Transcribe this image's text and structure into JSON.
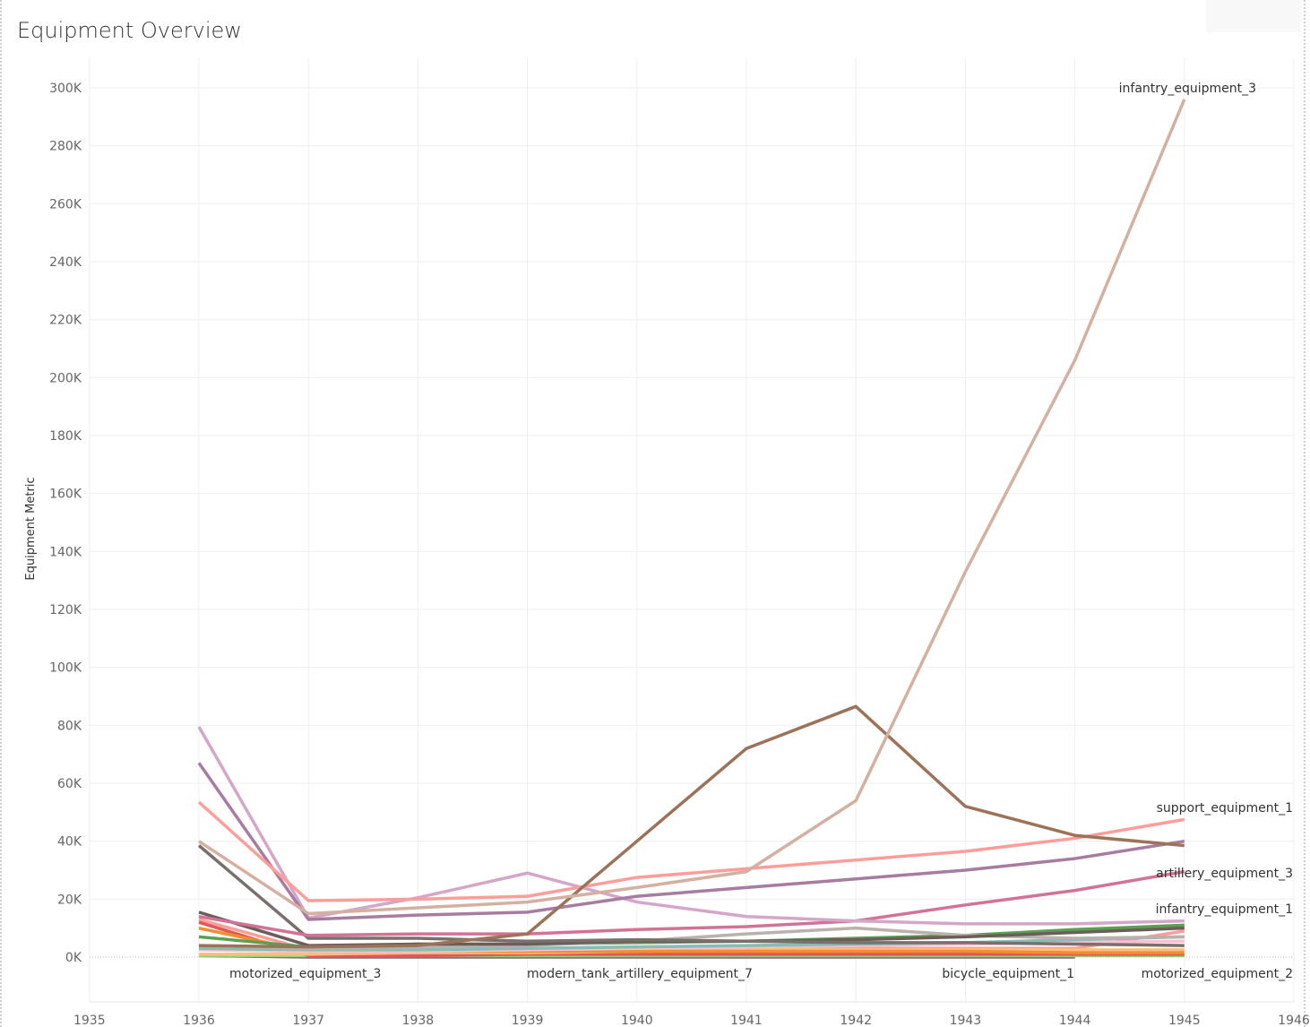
{
  "title": "Equipment Overview",
  "chart_data": {
    "type": "line",
    "title": "Equipment Overview",
    "xlabel": "",
    "ylabel": "Equipment Metric",
    "xlim": [
      1935,
      1946
    ],
    "ylim": [
      -15000,
      305000
    ],
    "x_ticks": [
      "1935",
      "1936",
      "1937",
      "1938",
      "1939",
      "1940",
      "1941",
      "1942",
      "1943",
      "1944",
      "1945",
      "1946"
    ],
    "y_ticks": [
      "0K",
      "20K",
      "40K",
      "60K",
      "80K",
      "100K",
      "120K",
      "140K",
      "160K",
      "180K",
      "200K",
      "220K",
      "240K",
      "260K",
      "280K",
      "300K"
    ],
    "grid": true,
    "x": [
      1936,
      1937,
      1938,
      1939,
      1940,
      1941,
      1942,
      1943,
      1944,
      1945
    ],
    "series": [
      {
        "color": "#d4b0a0",
        "values": [
          40000,
          15000,
          17000,
          19000,
          24000,
          29500,
          54000,
          133000,
          206000,
          296000
        ]
      },
      {
        "color": "#9c7259",
        "values": [
          4000,
          3500,
          4000,
          8000,
          40000,
          72000,
          86500,
          52000,
          42000,
          38500
        ]
      },
      {
        "color": "#ff9d9a",
        "values": [
          53500,
          19500,
          20000,
          21000,
          27500,
          30500,
          33500,
          36500,
          41000,
          47500
        ]
      },
      {
        "color": "#a87ca0",
        "values": [
          67000,
          13000,
          14500,
          15500,
          21000,
          24000,
          27000,
          30000,
          34000,
          40000
        ]
      },
      {
        "color": "#d4a6c8",
        "values": [
          79500,
          13500,
          20500,
          29000,
          19000,
          14000,
          12500,
          11500,
          11500,
          12500
        ]
      },
      {
        "color": "#d37295",
        "values": [
          14000,
          7500,
          8000,
          8000,
          9500,
          10500,
          12500,
          18000,
          23000,
          29500
        ]
      },
      {
        "color": "#79706e",
        "values": [
          38500,
          6500,
          6500,
          5500,
          6000,
          5500,
          5000,
          5000,
          4500,
          4000
        ]
      },
      {
        "color": "#6b5d5a",
        "values": [
          15500,
          4000,
          4500,
          4500,
          5500,
          5500,
          6000,
          7000,
          8500,
          10000
        ]
      },
      {
        "color": "#bab0ac",
        "values": [
          4000,
          3000,
          3500,
          4000,
          5500,
          8000,
          10000,
          7500,
          6500,
          7000
        ]
      },
      {
        "color": "#59a14f",
        "values": [
          7000,
          3500,
          4500,
          4500,
          5000,
          5500,
          6500,
          7500,
          9500,
          11000
        ]
      },
      {
        "color": "#86bcb6",
        "values": [
          3000,
          2500,
          2500,
          3000,
          3500,
          4000,
          4500,
          5000,
          6000,
          7000
        ]
      },
      {
        "color": "#fabfd2",
        "values": [
          2500,
          2000,
          2000,
          2500,
          3000,
          3500,
          4000,
          4500,
          5000,
          5500
        ]
      },
      {
        "color": "#f28e2b",
        "values": [
          10000,
          2000,
          2000,
          2000,
          2000,
          2000,
          2000,
          2000,
          1500,
          1500
        ]
      },
      {
        "color": "#ffbe7d",
        "values": [
          1000,
          1000,
          1500,
          1500,
          2000,
          2500,
          2500,
          2500,
          2500,
          2500
        ]
      },
      {
        "color": "#e15759",
        "values": [
          12000,
          500,
          500,
          1000,
          1000,
          1000,
          1000,
          1000,
          1000,
          1000
        ]
      },
      {
        "color": "#f1ce63",
        "values": [
          3500,
          1500,
          1500,
          1500,
          1500,
          1500,
          1500,
          1500,
          1500,
          1500
        ]
      },
      {
        "color": "#ff9d9a",
        "values": [
          13000,
          2500,
          2500,
          2500,
          2500,
          3000,
          3000,
          3000,
          3000,
          9000
        ]
      },
      {
        "color": "#8cd17d",
        "values": [
          500,
          500,
          500,
          500,
          500,
          500,
          500,
          500,
          500,
          500
        ]
      },
      {
        "color": "#79706e",
        "values": [
          500,
          0,
          0,
          0,
          0,
          0,
          0,
          0,
          0,
          null
        ]
      }
    ],
    "annotations": [
      "infantry_equipment_3",
      "support_equipment_1",
      "artillery_equipment_3",
      "infantry_equipment_1",
      "motorized_equipment_3",
      "modern_tank_artillery_equipment_7",
      "bicycle_equipment_1",
      "motorized_equipment_2"
    ]
  }
}
